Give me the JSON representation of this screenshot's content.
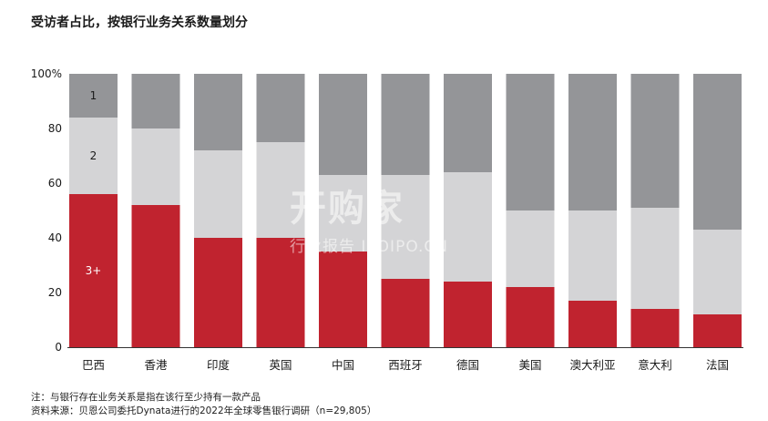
{
  "title": "受访者占比，按银行业务关系数量划分",
  "footnote": "注：与银行存在业务关系是指在该行至少持有一款产品",
  "source": "资料来源：贝恩公司委托Dynata进行的2022年全球零售银行调研（n=29,805）",
  "watermark": {
    "main": "开购家",
    "sub": "行业报告 IPOIPO.CN"
  },
  "colors": {
    "three_plus": "#c0232f",
    "two": "#d4d4d6",
    "one": "#949598",
    "axis": "#333333"
  },
  "chart_data": {
    "type": "bar",
    "stacked": true,
    "title": "受访者占比，按银行业务关系数量划分",
    "categories": [
      "巴西",
      "香港",
      "印度",
      "英国",
      "中国",
      "西班牙",
      "德国",
      "美国",
      "澳大利亚",
      "意大利",
      "法国"
    ],
    "series": [
      {
        "name": "3+",
        "values": [
          56,
          52,
          40,
          40,
          35,
          25,
          24,
          22,
          17,
          14,
          12
        ]
      },
      {
        "name": "2",
        "values": [
          28,
          28,
          32,
          35,
          28,
          38,
          40,
          28,
          33,
          37,
          31
        ]
      },
      {
        "name": "1",
        "values": [
          16,
          20,
          28,
          25,
          37,
          37,
          36,
          50,
          50,
          49,
          57
        ]
      }
    ],
    "ylim": [
      0,
      100
    ],
    "yticks": [
      "0",
      "20",
      "40",
      "60",
      "80",
      "100%"
    ],
    "segment_labels": {
      "category": "巴西",
      "labels": [
        "3+",
        "2",
        "1"
      ]
    },
    "legend": "none",
    "grid": false
  }
}
